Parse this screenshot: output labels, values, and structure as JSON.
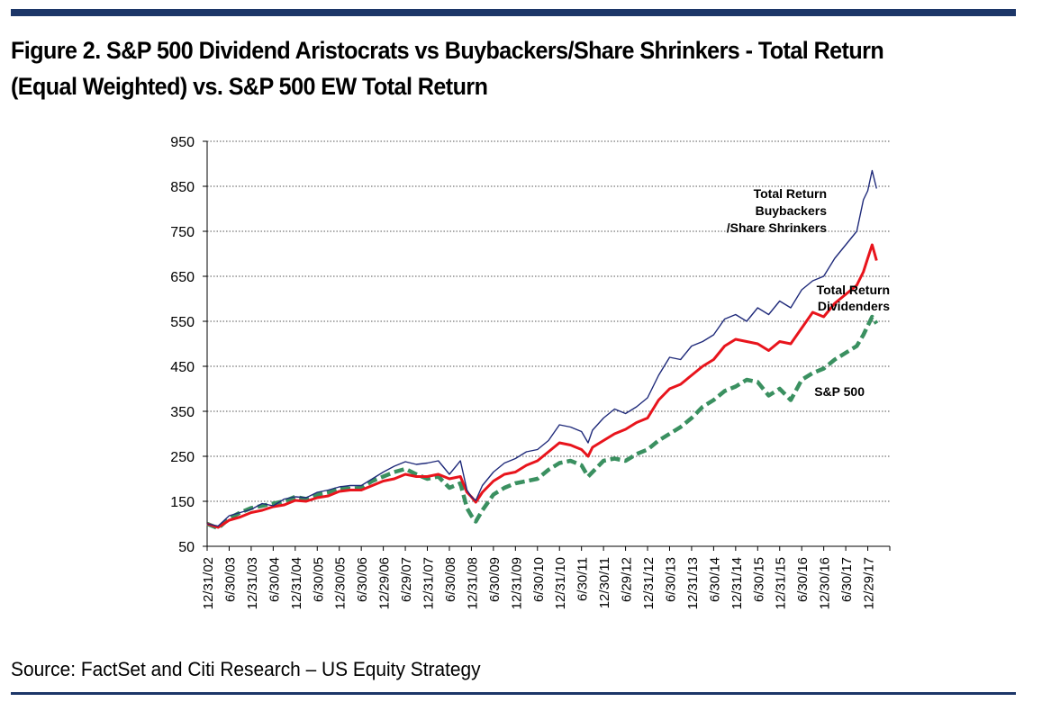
{
  "title": "Figure 2. S&P 500 Dividend Aristocrats vs Buybackers/Share Shrinkers - Total Return (Equal Weighted) vs. S&P 500  EW Total Return",
  "source": "Source: FactSet and Citi Research – US Equity Strategy",
  "colors": {
    "rule": "#1c3668",
    "buybackers": "#1f2a7a",
    "dividends": "#e8141c",
    "sp500": "#3a9060",
    "grid": "#555555"
  },
  "chart_data": {
    "type": "line",
    "title": "",
    "xlabel": "",
    "ylabel": "",
    "ylim": [
      50,
      950
    ],
    "yticks": [
      50,
      150,
      250,
      350,
      450,
      550,
      650,
      750,
      850,
      950
    ],
    "grid": "horizontal dotted",
    "x_tick_labels": [
      "12/31/02",
      "6/30/03",
      "12/31/03",
      "6/30/04",
      "12/31/04",
      "6/30/05",
      "12/30/05",
      "6/30/06",
      "12/29/06",
      "6/29/07",
      "12/31/07",
      "6/30/08",
      "12/31/08",
      "6/30/09",
      "12/31/09",
      "6/30/10",
      "12/31/10",
      "6/30/11",
      "12/30/11",
      "6/29/12",
      "12/31/12",
      "6/30/13",
      "12/31/13",
      "6/30/14",
      "12/31/14",
      "6/30/15",
      "12/31/15",
      "6/30/16",
      "12/30/16",
      "6/30/17",
      "12/29/17"
    ],
    "x_positions": [
      0,
      0.5,
      1,
      1.5,
      2,
      2.5,
      3,
      3.5,
      4,
      4.5,
      5,
      5.5,
      6,
      6.5,
      7,
      7.5,
      8,
      8.5,
      9,
      9.5,
      10,
      10.5,
      11,
      11.5,
      12,
      12.5,
      13,
      13.5,
      14,
      14.5,
      15
    ],
    "series": [
      {
        "name": "Total Return Buybackers /Share Shrinkers",
        "label_lines": [
          "Total Return",
          "Buybackers",
          "/Share Shrinkers"
        ],
        "style": "thin",
        "x": [
          0,
          0.25,
          0.5,
          0.75,
          1,
          1.25,
          1.5,
          1.75,
          2,
          2.25,
          2.5,
          2.75,
          3,
          3.25,
          3.5,
          3.75,
          4,
          4.25,
          4.5,
          4.75,
          5,
          5.25,
          5.5,
          5.75,
          5.9,
          6,
          6.1,
          6.25,
          6.5,
          6.75,
          7,
          7.25,
          7.5,
          7.75,
          8,
          8.25,
          8.5,
          8.65,
          8.75,
          9,
          9.25,
          9.5,
          9.75,
          10,
          10.25,
          10.5,
          10.75,
          11,
          11.25,
          11.5,
          11.75,
          12,
          12.25,
          12.5,
          12.75,
          13,
          13.25,
          13.5,
          13.75,
          14,
          14.25,
          14.5,
          14.75,
          14.9,
          15,
          15.1,
          15.2
        ],
        "values": [
          100,
          95,
          118,
          125,
          132,
          145,
          140,
          155,
          160,
          158,
          170,
          175,
          182,
          185,
          185,
          200,
          215,
          228,
          238,
          232,
          235,
          240,
          210,
          240,
          175,
          160,
          152,
          185,
          215,
          235,
          245,
          260,
          265,
          285,
          320,
          315,
          305,
          280,
          308,
          335,
          355,
          345,
          360,
          380,
          430,
          470,
          465,
          495,
          505,
          520,
          555,
          565,
          550,
          580,
          565,
          595,
          580,
          620,
          640,
          650,
          690,
          720,
          750,
          820,
          840,
          885,
          845
        ]
      },
      {
        "name": "Total Return Dividenders",
        "label_lines": [
          "Total Return",
          "Dividenders"
        ],
        "style": "thick",
        "x": [
          0,
          0.25,
          0.5,
          0.75,
          1,
          1.25,
          1.5,
          1.75,
          2,
          2.25,
          2.5,
          2.75,
          3,
          3.25,
          3.5,
          3.75,
          4,
          4.25,
          4.5,
          4.75,
          5,
          5.25,
          5.5,
          5.75,
          5.9,
          6,
          6.1,
          6.25,
          6.5,
          6.75,
          7,
          7.25,
          7.5,
          7.75,
          8,
          8.25,
          8.5,
          8.65,
          8.75,
          9,
          9.25,
          9.5,
          9.75,
          10,
          10.25,
          10.5,
          10.75,
          11,
          11.25,
          11.5,
          11.75,
          12,
          12.25,
          12.5,
          12.75,
          13,
          13.25,
          13.5,
          13.75,
          14,
          14.25,
          14.5,
          14.75,
          14.9,
          15,
          15.1,
          15.2
        ],
        "values": [
          100,
          92,
          108,
          115,
          125,
          130,
          138,
          142,
          152,
          150,
          158,
          162,
          172,
          175,
          175,
          185,
          195,
          200,
          210,
          205,
          205,
          210,
          200,
          205,
          170,
          160,
          148,
          170,
          195,
          210,
          215,
          230,
          240,
          260,
          280,
          275,
          265,
          250,
          270,
          285,
          300,
          310,
          325,
          335,
          375,
          400,
          410,
          430,
          450,
          465,
          495,
          510,
          505,
          500,
          485,
          505,
          500,
          535,
          570,
          560,
          590,
          610,
          630,
          660,
          690,
          720,
          685
        ]
      },
      {
        "name": "S&P 500",
        "label_lines": [
          "S&P 500"
        ],
        "style": "dashed",
        "x": [
          0,
          0.25,
          0.5,
          0.75,
          1,
          1.25,
          1.5,
          1.75,
          2,
          2.25,
          2.5,
          2.75,
          3,
          3.25,
          3.5,
          3.75,
          4,
          4.25,
          4.5,
          4.75,
          5,
          5.25,
          5.5,
          5.75,
          5.9,
          6,
          6.1,
          6.25,
          6.5,
          6.75,
          7,
          7.25,
          7.5,
          7.75,
          8,
          8.25,
          8.5,
          8.65,
          8.75,
          9,
          9.25,
          9.5,
          9.75,
          10,
          10.25,
          10.5,
          10.75,
          11,
          11.25,
          11.5,
          11.75,
          12,
          12.25,
          12.5,
          12.75,
          13,
          13.25,
          13.5,
          13.75,
          14,
          14.25,
          14.5,
          14.75,
          14.9,
          15,
          15.1,
          15.2
        ],
        "values": [
          100,
          90,
          112,
          125,
          135,
          140,
          145,
          150,
          160,
          155,
          165,
          170,
          180,
          178,
          180,
          195,
          205,
          215,
          222,
          210,
          200,
          205,
          180,
          190,
          135,
          118,
          105,
          130,
          165,
          180,
          190,
          195,
          200,
          220,
          235,
          240,
          230,
          205,
          215,
          240,
          245,
          240,
          255,
          265,
          285,
          300,
          315,
          335,
          360,
          375,
          395,
          405,
          420,
          415,
          385,
          400,
          375,
          420,
          435,
          445,
          465,
          480,
          495,
          520,
          540,
          560,
          545
        ]
      }
    ]
  }
}
